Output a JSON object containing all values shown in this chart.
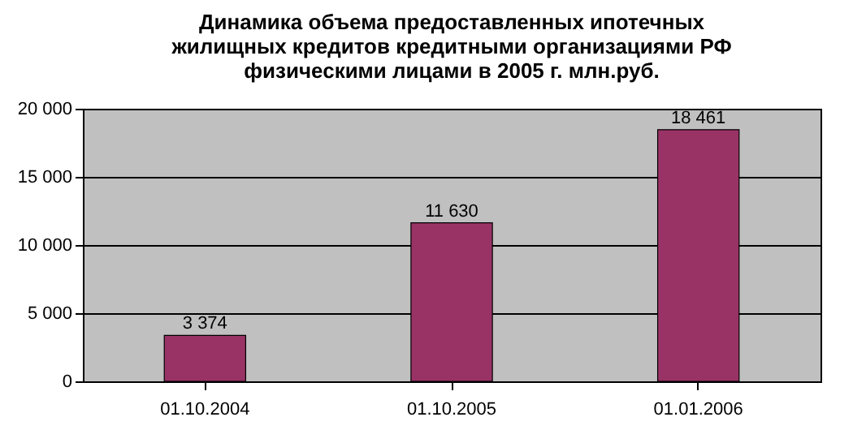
{
  "chart_data": {
    "type": "bar",
    "title": "Динамика объема предоставленных ипотечных жилищных кредитов кредитными организациями РФ физическими лицами в 2005 г. млн.руб.",
    "categories": [
      "01.10.2004",
      "01.10.2005",
      "01.01.2006"
    ],
    "values": [
      3374,
      11630,
      18461
    ],
    "value_labels": [
      "3 374",
      "11 630",
      "18 461"
    ],
    "color": "#993366",
    "ylim": [
      0,
      20000
    ],
    "yticks": [
      {
        "value": 0,
        "label": "0"
      },
      {
        "value": 5000,
        "label": "5 000"
      },
      {
        "value": 10000,
        "label": "10 000"
      },
      {
        "value": 15000,
        "label": "15 000"
      },
      {
        "value": 20000,
        "label": "20 000"
      }
    ],
    "grid": "y"
  }
}
